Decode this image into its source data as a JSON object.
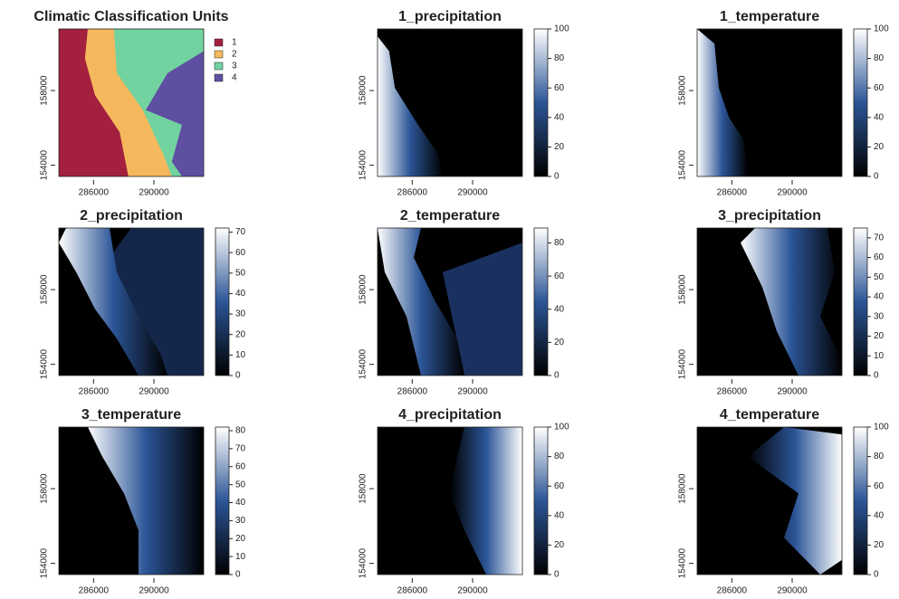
{
  "chart_data": [
    {
      "type": "categorical-raster",
      "title": "Climatic Classification Units",
      "xlim": [
        283700,
        293300
      ],
      "xticks": [
        286000,
        290000
      ],
      "ylim": [
        153400,
        161300
      ],
      "yticks": [
        154000,
        158000
      ],
      "categories": [
        "1",
        "2",
        "3",
        "4"
      ],
      "colors": [
        "#a3203f",
        "#f6b85c",
        "#72d3a0",
        "#5e4fa2"
      ]
    },
    {
      "type": "raster",
      "title": "1_precipitation",
      "xlim": [
        283700,
        293300
      ],
      "xticks": [
        286000,
        290000
      ],
      "ylim": [
        153400,
        161300
      ],
      "yticks": [
        154000,
        158000
      ],
      "zlim": [
        0,
        100
      ],
      "zticks": [
        0,
        20,
        40,
        60,
        80,
        100
      ],
      "colors": [
        "#000000",
        "#2b5597",
        "#ffffff"
      ]
    },
    {
      "type": "raster",
      "title": "1_temperature",
      "xlim": [
        283700,
        293300
      ],
      "xticks": [
        286000,
        290000
      ],
      "ylim": [
        153400,
        161300
      ],
      "yticks": [
        154000,
        158000
      ],
      "zlim": [
        0,
        100
      ],
      "zticks": [
        0,
        20,
        40,
        60,
        80,
        100
      ],
      "colors": [
        "#000000",
        "#2b5597",
        "#ffffff"
      ]
    },
    {
      "type": "raster",
      "title": "2_precipitation",
      "xlim": [
        283700,
        293300
      ],
      "xticks": [
        286000,
        290000
      ],
      "ylim": [
        153400,
        161300
      ],
      "yticks": [
        154000,
        158000
      ],
      "zlim": [
        0,
        72
      ],
      "zticks": [
        0,
        10,
        20,
        30,
        40,
        50,
        60,
        70
      ],
      "colors": [
        "#000000",
        "#2b5597",
        "#ffffff"
      ]
    },
    {
      "type": "raster",
      "title": "2_temperature",
      "xlim": [
        283700,
        293300
      ],
      "xticks": [
        286000,
        290000
      ],
      "ylim": [
        153400,
        161300
      ],
      "yticks": [
        154000,
        158000
      ],
      "zlim": [
        0,
        89
      ],
      "zticks": [
        0,
        20,
        40,
        60,
        80
      ],
      "colors": [
        "#000000",
        "#2b5597",
        "#ffffff"
      ]
    },
    {
      "type": "raster",
      "title": "3_precipitation",
      "xlim": [
        283700,
        293300
      ],
      "xticks": [
        286000,
        290000
      ],
      "ylim": [
        153400,
        161300
      ],
      "yticks": [
        154000,
        158000
      ],
      "zlim": [
        0,
        75
      ],
      "zticks": [
        0,
        10,
        20,
        30,
        40,
        50,
        60,
        70
      ],
      "colors": [
        "#000000",
        "#2b5597",
        "#ffffff"
      ]
    },
    {
      "type": "raster",
      "title": "3_temperature",
      "xlim": [
        283700,
        293300
      ],
      "xticks": [
        286000,
        290000
      ],
      "ylim": [
        153400,
        161300
      ],
      "yticks": [
        154000,
        158000
      ],
      "zlim": [
        0,
        82
      ],
      "zticks": [
        0,
        10,
        20,
        30,
        40,
        50,
        60,
        70,
        80
      ],
      "colors": [
        "#000000",
        "#2b5597",
        "#ffffff"
      ]
    },
    {
      "type": "raster",
      "title": "4_precipitation",
      "xlim": [
        283700,
        293300
      ],
      "xticks": [
        286000,
        290000
      ],
      "ylim": [
        153400,
        161300
      ],
      "yticks": [
        154000,
        158000
      ],
      "zlim": [
        0,
        100
      ],
      "zticks": [
        0,
        20,
        40,
        60,
        80,
        100
      ],
      "colors": [
        "#000000",
        "#2b5597",
        "#ffffff"
      ]
    },
    {
      "type": "raster",
      "title": "4_temperature",
      "xlim": [
        283700,
        293300
      ],
      "xticks": [
        286000,
        290000
      ],
      "ylim": [
        153400,
        161300
      ],
      "yticks": [
        154000,
        158000
      ],
      "zlim": [
        0,
        100
      ],
      "zticks": [
        0,
        20,
        40,
        60,
        80,
        100
      ],
      "colors": [
        "#000000",
        "#2b5597",
        "#ffffff"
      ]
    }
  ]
}
